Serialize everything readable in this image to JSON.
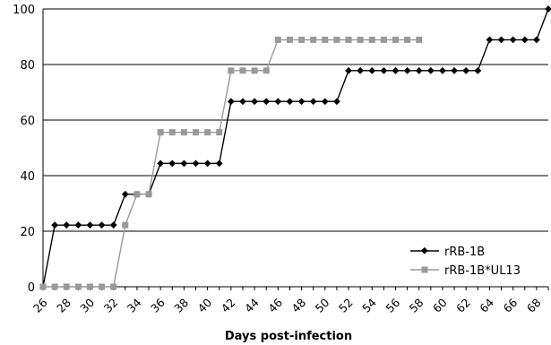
{
  "chart_data": {
    "type": "line",
    "title": "",
    "xlabel": "Days post-infection",
    "ylabel": "",
    "xlim": [
      26,
      69
    ],
    "ylim": [
      0,
      100
    ],
    "yticks": [
      0,
      20,
      40,
      60,
      80,
      100
    ],
    "xticks": [
      26,
      28,
      30,
      32,
      34,
      36,
      38,
      40,
      42,
      44,
      46,
      48,
      50,
      52,
      54,
      56,
      58,
      60,
      62,
      64,
      66,
      68
    ],
    "grid": "horizontal",
    "legend_position": "bottom-right",
    "series": [
      {
        "name": "rRB-1B",
        "color": "#000000",
        "marker": "diamond",
        "x": [
          26,
          27,
          28,
          29,
          30,
          31,
          32,
          33,
          34,
          35,
          36,
          37,
          38,
          39,
          40,
          41,
          42,
          43,
          44,
          45,
          46,
          47,
          48,
          49,
          50,
          51,
          52,
          53,
          54,
          55,
          56,
          57,
          58,
          59,
          60,
          61,
          62,
          63,
          64,
          65,
          66,
          67,
          68,
          69
        ],
        "values": [
          0,
          22.2,
          22.2,
          22.2,
          22.2,
          22.2,
          22.2,
          33.3,
          33.3,
          33.3,
          44.4,
          44.4,
          44.4,
          44.4,
          44.4,
          44.4,
          66.7,
          66.7,
          66.7,
          66.7,
          66.7,
          66.7,
          66.7,
          66.7,
          66.7,
          66.7,
          77.8,
          77.8,
          77.8,
          77.8,
          77.8,
          77.8,
          77.8,
          77.8,
          77.8,
          77.8,
          77.8,
          77.8,
          88.9,
          88.9,
          88.9,
          88.9,
          88.9,
          100
        ]
      },
      {
        "name": "rRB-1B*UL13",
        "color": "#999999",
        "marker": "square",
        "x": [
          26,
          27,
          28,
          29,
          30,
          31,
          32,
          33,
          34,
          35,
          36,
          37,
          38,
          39,
          40,
          41,
          42,
          43,
          44,
          45,
          46,
          47,
          48,
          49,
          50,
          51,
          52,
          53,
          54,
          55,
          56,
          57,
          58
        ],
        "values": [
          0,
          0,
          0,
          0,
          0,
          0,
          0,
          22.2,
          33.3,
          33.3,
          55.6,
          55.6,
          55.6,
          55.6,
          55.6,
          55.6,
          77.8,
          77.8,
          77.8,
          77.8,
          88.9,
          88.9,
          88.9,
          88.9,
          88.9,
          88.9,
          88.9,
          88.9,
          88.9,
          88.9,
          88.9,
          88.9,
          88.9
        ]
      }
    ]
  }
}
